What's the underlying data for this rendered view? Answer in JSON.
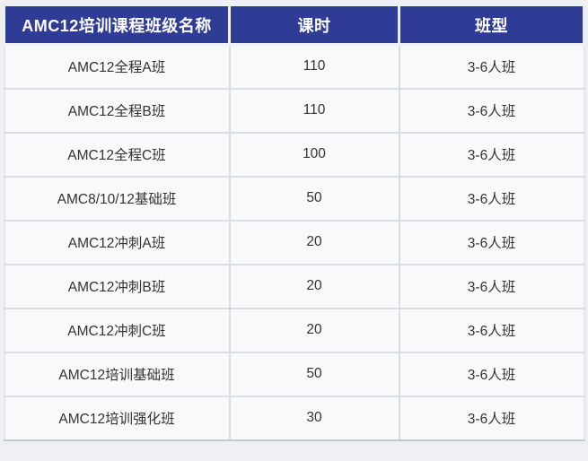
{
  "table": {
    "headers": [
      "AMC12培训课程班级名称",
      "课时",
      "班型"
    ],
    "rows": [
      {
        "name": "AMC12全程A班",
        "hours": "110",
        "type": "3-6人班"
      },
      {
        "name": "AMC12全程B班",
        "hours": "110",
        "type": "3-6人班"
      },
      {
        "name": "AMC12全程C班",
        "hours": "100",
        "type": "3-6人班"
      },
      {
        "name": "AMC8/10/12基础班",
        "hours": "50",
        "type": "3-6人班"
      },
      {
        "name": "AMC12冲刺A班",
        "hours": "20",
        "type": "3-6人班"
      },
      {
        "name": "AMC12冲刺B班",
        "hours": "20",
        "type": "3-6人班"
      },
      {
        "name": "AMC12冲刺C班",
        "hours": "20",
        "type": "3-6人班"
      },
      {
        "name": "AMC12培训基础班",
        "hours": "50",
        "type": "3-6人班"
      },
      {
        "name": "AMC12培训强化班",
        "hours": "30",
        "type": "3-6人班"
      }
    ]
  },
  "chart_data": {
    "type": "table",
    "title": "",
    "columns": [
      "AMC12培训课程班级名称",
      "课时",
      "班型"
    ],
    "rows": [
      [
        "AMC12全程A班",
        "110",
        "3-6人班"
      ],
      [
        "AMC12全程B班",
        "110",
        "3-6人班"
      ],
      [
        "AMC12全程C班",
        "100",
        "3-6人班"
      ],
      [
        "AMC8/10/12基础班",
        "50",
        "3-6人班"
      ],
      [
        "AMC12冲刺A班",
        "20",
        "3-6人班"
      ],
      [
        "AMC12冲刺B班",
        "20",
        "3-6人班"
      ],
      [
        "AMC12冲刺C班",
        "20",
        "3-6人班"
      ],
      [
        "AMC12培训基础班",
        "50",
        "3-6人班"
      ],
      [
        "AMC12培训强化班",
        "30",
        "3-6人班"
      ]
    ]
  },
  "colors": {
    "header_bg": "#2e3c96",
    "header_text": "#ffffff",
    "row_bg": "#f7f9fb",
    "grid_line": "#d9dce1",
    "page_bg": "#eef0f3",
    "body_text": "#333333"
  }
}
